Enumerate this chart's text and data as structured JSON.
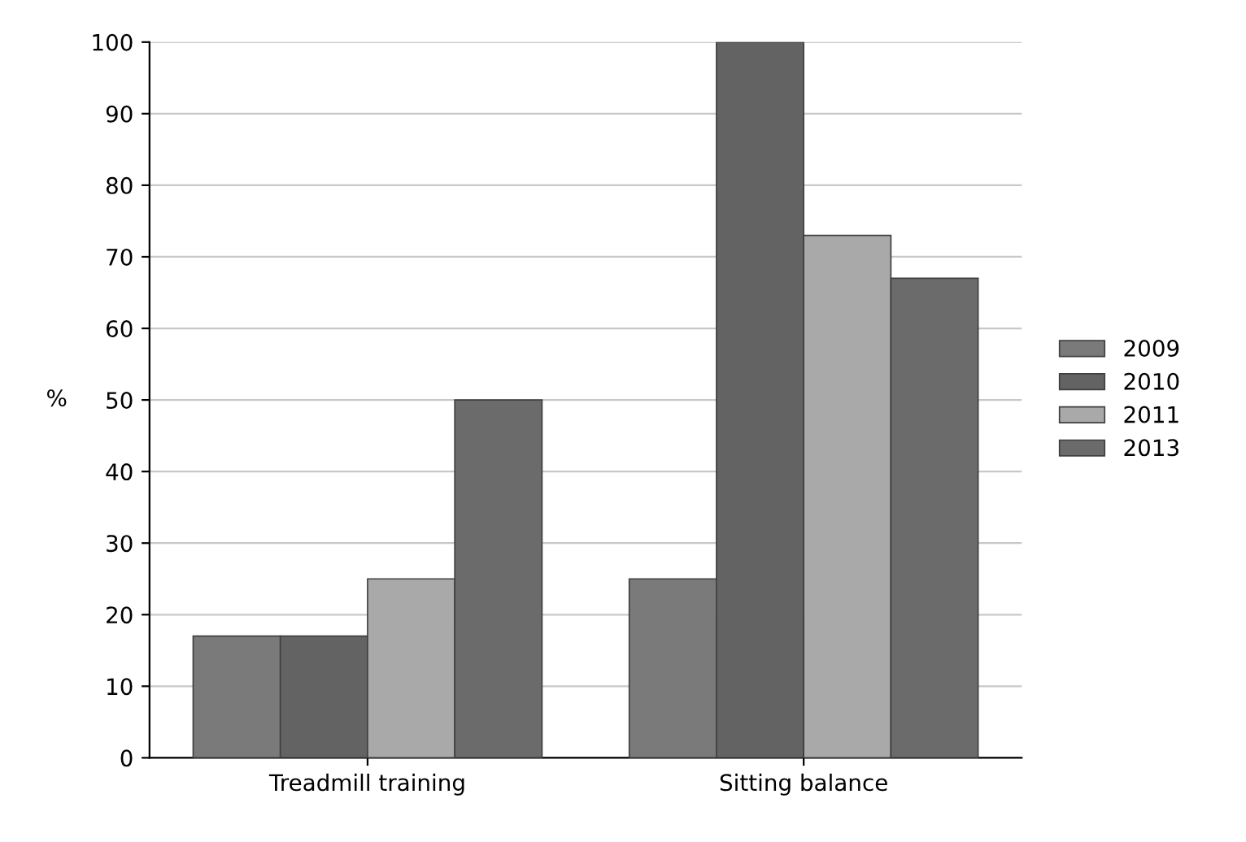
{
  "chart_data": {
    "type": "bar",
    "ylabel": "%",
    "categories": [
      "Treadmill training",
      "Sitting balance"
    ],
    "series": [
      {
        "name": "2009",
        "color": "#7a7a7a",
        "values": [
          17,
          25
        ]
      },
      {
        "name": "2010",
        "color": "#636363",
        "values": [
          17,
          100
        ]
      },
      {
        "name": "2011",
        "color": "#a9a9a9",
        "values": [
          25,
          73
        ]
      },
      {
        "name": "2013",
        "color": "#6b6b6b",
        "values": [
          50,
          67
        ]
      }
    ],
    "ylim": [
      0,
      100
    ],
    "yticks": [
      0,
      10,
      20,
      30,
      40,
      50,
      60,
      70,
      80,
      90,
      100
    ],
    "grid": "y",
    "legend": "right"
  }
}
